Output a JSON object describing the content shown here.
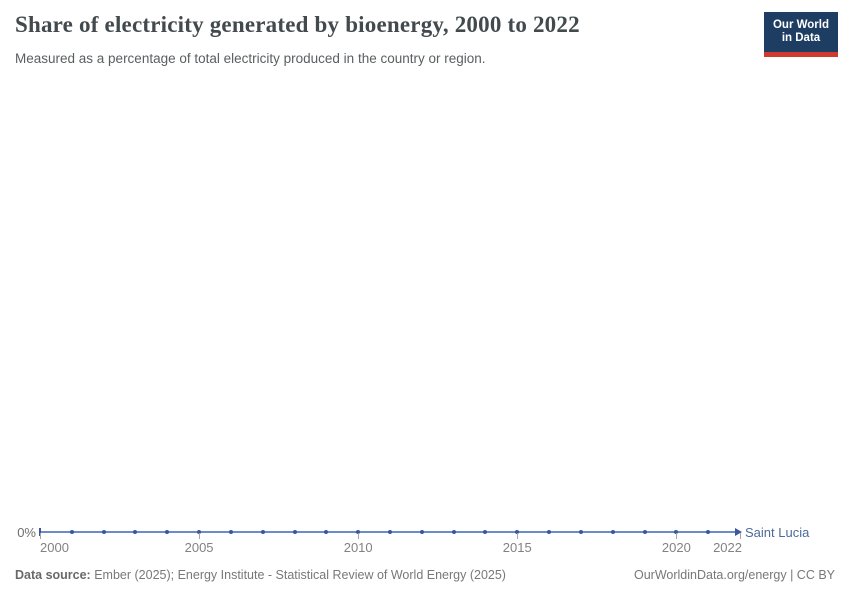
{
  "header": {
    "title": "Share of electricity generated by bioenergy, 2000 to 2022",
    "subtitle": "Measured as a percentage of total electricity produced in the country or region.",
    "logo": {
      "line1": "Our World",
      "line2": "in Data"
    }
  },
  "chart_data": {
    "type": "line",
    "title": "Share of electricity generated by bioenergy, 2000 to 2022",
    "subtitle": "Measured as a percentage of total electricity produced in the country or region.",
    "x": [
      2000,
      2001,
      2002,
      2003,
      2004,
      2005,
      2006,
      2007,
      2008,
      2009,
      2010,
      2011,
      2012,
      2013,
      2014,
      2015,
      2016,
      2017,
      2018,
      2019,
      2020,
      2021,
      2022
    ],
    "series": [
      {
        "name": "Saint Lucia",
        "color": "#4c6a9c",
        "values": [
          0,
          0,
          0,
          0,
          0,
          0,
          0,
          0,
          0,
          0,
          0,
          0,
          0,
          0,
          0,
          0,
          0,
          0,
          0,
          0,
          0,
          0,
          0
        ]
      }
    ],
    "unit": "%",
    "grid": false,
    "legend": "end-of-line-label",
    "y_axis": {
      "min": 0,
      "tick_labels": [
        "0%"
      ]
    },
    "x_axis": {
      "tick_years": [
        2000,
        2005,
        2010,
        2015,
        2020,
        2022
      ],
      "tick_labels": [
        "2000",
        "2005",
        "2010",
        "2015",
        "2020",
        "2022"
      ]
    },
    "line_color": "#6d8cc7",
    "marker_color": "#3a57a0"
  },
  "footer": {
    "source_label": "Data source:",
    "source_text": " Ember (2025); Energy Institute - Statistical Review of World Energy (2025)",
    "link_text": "OurWorldinData.org/energy | CC BY"
  },
  "colors": {
    "logo_navy": "#1d3d63",
    "logo_red": "#d0392e",
    "series_blue": "#4c6a9c"
  }
}
